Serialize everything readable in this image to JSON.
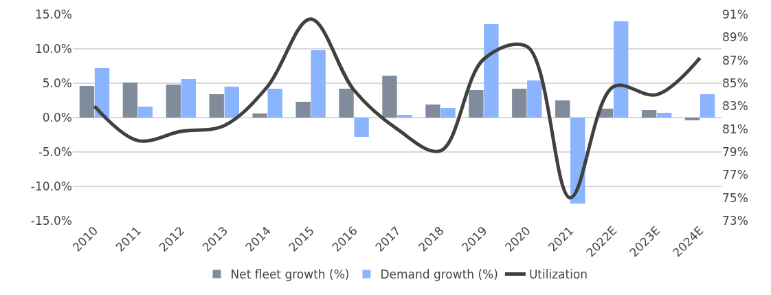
{
  "chart_data": {
    "type": "bar",
    "categories": [
      "2010",
      "2011",
      "2012",
      "2013",
      "2014",
      "2015",
      "2016",
      "2017",
      "2018",
      "2019",
      "2020",
      "2021",
      "2022E",
      "2023E",
      "2024E"
    ],
    "series": [
      {
        "name": "Net fleet growth (%)",
        "color": "#808b9c",
        "values": [
          4.6,
          5.1,
          4.8,
          3.4,
          0.6,
          2.3,
          4.2,
          6.1,
          1.9,
          4.0,
          4.2,
          2.5,
          1.3,
          1.1,
          -0.4
        ]
      },
      {
        "name": "Demand growth (%)",
        "color": "#8ab4fe",
        "values": [
          7.2,
          1.6,
          5.6,
          4.5,
          4.2,
          9.8,
          -2.8,
          0.4,
          1.4,
          13.6,
          5.4,
          -12.5,
          14.0,
          0.7,
          3.4
        ]
      },
      {
        "name": "Utilization",
        "color": "#404040",
        "type": "line",
        "axis": "y2",
        "values": [
          83.0,
          80.0,
          80.8,
          81.3,
          84.7,
          90.6,
          84.4,
          81.0,
          79.1,
          87.1,
          88.2,
          75.0,
          84.7,
          84.0,
          87.2
        ]
      }
    ],
    "ylim": [
      -15,
      15
    ],
    "yticks": [
      {
        "value": -15,
        "label": "-15.0%"
      },
      {
        "value": -10,
        "label": "-10.0%"
      },
      {
        "value": -5,
        "label": "-5.0%"
      },
      {
        "value": 0,
        "label": "0.0%"
      },
      {
        "value": 5,
        "label": "5.0%"
      },
      {
        "value": 10,
        "label": "10.0%"
      },
      {
        "value": 15,
        "label": "15.0%"
      }
    ],
    "y2lim": [
      73,
      91
    ],
    "y2ticks": [
      {
        "value": 73,
        "label": "73%"
      },
      {
        "value": 75,
        "label": "75%"
      },
      {
        "value": 77,
        "label": "77%"
      },
      {
        "value": 79,
        "label": "79%"
      },
      {
        "value": 81,
        "label": "81%"
      },
      {
        "value": 83,
        "label": "83%"
      },
      {
        "value": 85,
        "label": "85%"
      },
      {
        "value": 87,
        "label": "87%"
      },
      {
        "value": 89,
        "label": "89%"
      },
      {
        "value": 91,
        "label": "91%"
      }
    ],
    "grid": "y",
    "legend": "bottom",
    "marker": "none",
    "line_style": "solid"
  }
}
